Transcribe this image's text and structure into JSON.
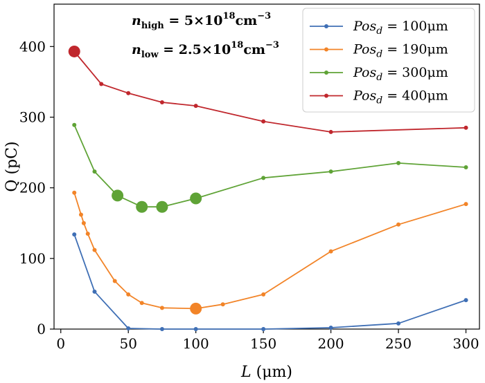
{
  "chart_data": {
    "type": "line",
    "xlabel": "L (μm)",
    "ylabel": "Q (pC)",
    "xlim": [
      -5,
      310
    ],
    "ylim": [
      0,
      460
    ],
    "xticks": [
      0,
      50,
      100,
      150,
      200,
      250,
      300
    ],
    "yticks": [
      0,
      100,
      200,
      300,
      400
    ],
    "annotations": [
      {
        "text": "n_high = 5×10^18 cm^-3"
      },
      {
        "text": "n_low = 2.5×10^18 cm^-3"
      }
    ],
    "legend_position": "top-right",
    "series": [
      {
        "name": "Pos_d = 100μm",
        "color": "#3f6fb5",
        "x": [
          10,
          25,
          50,
          75,
          100,
          150,
          200,
          250,
          300
        ],
        "y": [
          134,
          53,
          1,
          0,
          0,
          0,
          2,
          8,
          41
        ],
        "highlight": []
      },
      {
        "name": "Pos_d = 190μm",
        "color": "#f28428",
        "x": [
          10,
          15,
          17,
          20,
          25,
          40,
          50,
          60,
          75,
          100,
          120,
          150,
          200,
          250,
          300
        ],
        "y": [
          193,
          162,
          150,
          135,
          112,
          68,
          49,
          37,
          30,
          29,
          35,
          49,
          110,
          148,
          177
        ],
        "highlight": [
          100
        ]
      },
      {
        "name": "Pos_d = 300μm",
        "color": "#5fa336",
        "x": [
          10,
          25,
          42,
          60,
          75,
          100,
          150,
          200,
          250,
          300
        ],
        "y": [
          289,
          223,
          189,
          173,
          173,
          185,
          214,
          223,
          235,
          229
        ],
        "highlight": [
          42,
          60,
          75,
          100
        ]
      },
      {
        "name": "Pos_d = 400μm",
        "color": "#c0272d",
        "x": [
          10,
          30,
          50,
          75,
          100,
          150,
          200,
          300
        ],
        "y": [
          393,
          347,
          334,
          321,
          316,
          294,
          279,
          285
        ],
        "highlight": [
          10
        ]
      }
    ]
  }
}
